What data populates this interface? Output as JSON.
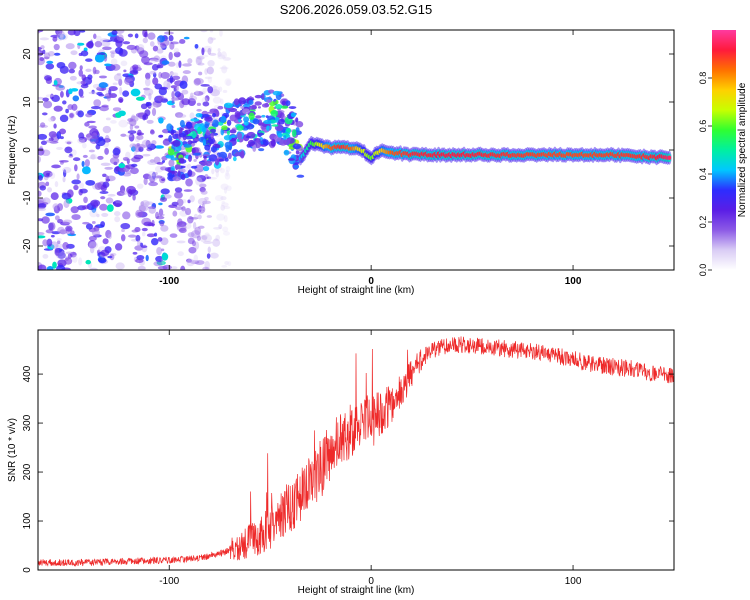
{
  "title": "S206.2026.059.03.52.G15",
  "colors": {
    "snr_line": "#ee2a2a",
    "colormap": [
      "#ffffff",
      "#d9ccf5",
      "#8c5ae6",
      "#5a1ee6",
      "#2d2dff",
      "#00c8ff",
      "#00f0a0",
      "#30ff30",
      "#c8ff00",
      "#ffd000",
      "#ff7000",
      "#ff1a3c",
      "#ff3aa0"
    ]
  },
  "chart_data": [
    {
      "type": "heatmap",
      "title": "S206.2026.059.03.52.G15",
      "xlabel": "Height of straight line (km)",
      "ylabel": "Frequency (Hz)",
      "xlim": [
        -165,
        150
      ],
      "ylim": [
        -25,
        25
      ],
      "xticks": [
        -100,
        0,
        100
      ],
      "yticks": [
        -20,
        -10,
        0,
        10,
        20
      ],
      "colorbar": {
        "label": "Normalized spectral amplitude",
        "range": [
          0,
          1
        ],
        "ticks": [
          "0.0",
          "0.2",
          "0.4",
          "0.6",
          "0.8"
        ]
      },
      "ridge": {
        "x": [
          -35,
          -30,
          -25,
          -20,
          -15,
          -10,
          -5,
          0,
          5,
          10,
          20,
          40,
          60,
          80,
          100,
          120,
          140,
          148
        ],
        "frequency_hz": [
          -2,
          1.5,
          1,
          0.5,
          0.5,
          0.5,
          0,
          -1.5,
          0,
          -0.5,
          -1,
          -1,
          -1,
          -1,
          -1,
          -1,
          -1.5,
          -1.5
        ],
        "amplitude": [
          0.4,
          0.55,
          0.7,
          0.85,
          0.9,
          0.85,
          0.7,
          0.6,
          0.75,
          0.85,
          0.9,
          0.92,
          0.9,
          0.88,
          0.87,
          0.88,
          0.9,
          0.95
        ]
      },
      "description_regions": [
        {
          "x_range": [
            -165,
            -100
          ],
          "frequency_range": [
            -25,
            25
          ],
          "amplitude_level": 0.05
        },
        {
          "x_range": [
            -100,
            -35
          ],
          "frequency_range": [
            -5,
            15
          ],
          "amplitude_level": 0.25
        }
      ]
    },
    {
      "type": "line",
      "title": "",
      "xlabel": "Height of straight line (km)",
      "ylabel": "SNR (10 * v/v)",
      "xlim": [
        -165,
        150
      ],
      "ylim": [
        0,
        490
      ],
      "xticks": [
        -100,
        0,
        100
      ],
      "yticks": [
        0,
        100,
        200,
        300,
        400
      ],
      "series": [
        {
          "name": "SNR",
          "x": [
            -165,
            -140,
            -120,
            -100,
            -90,
            -80,
            -70,
            -60,
            -50,
            -45,
            -40,
            -35,
            -30,
            -25,
            -20,
            -15,
            -10,
            -5,
            0,
            5,
            10,
            15,
            20,
            25,
            30,
            40,
            50,
            60,
            70,
            80,
            90,
            100,
            110,
            120,
            130,
            140,
            150
          ],
          "y": [
            15,
            15,
            18,
            20,
            22,
            28,
            40,
            60,
            85,
            110,
            130,
            150,
            175,
            210,
            240,
            265,
            285,
            300,
            310,
            320,
            340,
            370,
            400,
            430,
            450,
            460,
            460,
            455,
            450,
            445,
            440,
            430,
            420,
            415,
            410,
            400,
            395
          ]
        }
      ],
      "noise_amplitude": 20
    }
  ]
}
